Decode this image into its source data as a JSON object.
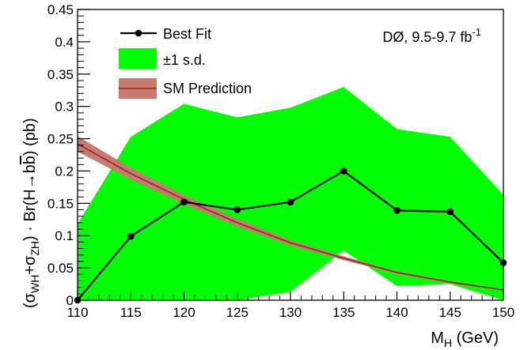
{
  "chart_data": {
    "type": "line",
    "xlabel": {
      "main": "M",
      "sub": "H",
      "unit": " (GeV)"
    },
    "ylabel": {
      "parts": [
        {
          "t": "(σ",
          "s": ""
        },
        {
          "t": "WH",
          "s": "sub"
        },
        {
          "t": "+σ",
          "s": ""
        },
        {
          "t": "ZH",
          "s": "sub"
        },
        {
          "t": ") · Br(H→b",
          "s": ""
        },
        {
          "t": "b",
          "s": "over"
        },
        {
          "t": ") (pb)",
          "s": ""
        }
      ]
    },
    "annotation": {
      "main": "DØ, 9.5-9.7 fb",
      "sup": "-1"
    },
    "xlim": [
      110,
      150
    ],
    "ylim": [
      0,
      0.45
    ],
    "xticks": [
      "110",
      "115",
      "120",
      "125",
      "130",
      "135",
      "140",
      "145",
      "150"
    ],
    "yticks": [
      "0",
      "0.05",
      "0.1",
      "0.15",
      "0.2",
      "0.25",
      "0.3",
      "0.35",
      "0.4",
      "0.45"
    ],
    "x": [
      110,
      115,
      120,
      125,
      130,
      135,
      140,
      145,
      150
    ],
    "series": [
      {
        "name": "Best Fit",
        "kind": "line-markers",
        "color": "#000000",
        "values": [
          0.0,
          0.099,
          0.152,
          0.14,
          0.152,
          0.2,
          0.139,
          0.137,
          0.058
        ]
      },
      {
        "name": "±1 s.d.",
        "kind": "band",
        "color": "#00ff00",
        "low": [
          0.0,
          0.0,
          0.0,
          0.0,
          0.013,
          0.077,
          0.022,
          0.025,
          0.0
        ],
        "high": [
          0.118,
          0.253,
          0.304,
          0.283,
          0.298,
          0.33,
          0.265,
          0.253,
          0.163
        ]
      },
      {
        "name": "SM Prediction",
        "kind": "band-line",
        "color": "#8b2a22",
        "band_color": "#c87a70",
        "values": [
          0.242,
          0.196,
          0.156,
          0.12,
          0.089,
          0.065,
          0.043,
          0.028,
          0.016
        ],
        "low": [
          0.23,
          0.187,
          0.149,
          0.114,
          0.085,
          0.062,
          0.041,
          0.026,
          0.015
        ],
        "high": [
          0.254,
          0.205,
          0.163,
          0.126,
          0.093,
          0.068,
          0.045,
          0.03,
          0.017
        ]
      }
    ],
    "legend": {
      "position": "top-left"
    }
  }
}
